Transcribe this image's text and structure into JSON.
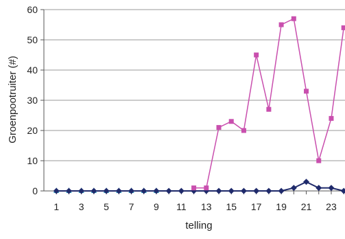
{
  "chart_data": {
    "type": "line",
    "title": "",
    "xlabel": "telling",
    "ylabel": "Groenpootruiter (#)",
    "x": [
      1,
      2,
      3,
      4,
      5,
      6,
      7,
      8,
      9,
      10,
      11,
      12,
      13,
      14,
      15,
      16,
      17,
      18,
      19,
      20,
      21,
      22,
      23,
      24
    ],
    "x_tick_labels": [
      "1",
      "3",
      "5",
      "7",
      "9",
      "11",
      "13",
      "15",
      "17",
      "19",
      "21",
      "23"
    ],
    "y_tick_labels": [
      "0",
      "10",
      "20",
      "30",
      "40",
      "50",
      "60"
    ],
    "ylim": [
      0,
      60
    ],
    "grid": true,
    "legend": "none",
    "series": [
      {
        "color": "#c94fae",
        "marker": "square",
        "values": [
          null,
          null,
          null,
          null,
          null,
          null,
          null,
          null,
          null,
          null,
          null,
          1,
          1,
          21,
          23,
          20,
          45,
          27,
          55,
          57,
          33,
          10,
          24,
          54
        ]
      },
      {
        "color": "#1f2a6b",
        "marker": "diamond",
        "values": [
          0,
          0,
          0,
          0,
          0,
          0,
          0,
          0,
          0,
          0,
          0,
          0,
          0,
          0,
          0,
          0,
          0,
          0,
          0,
          1,
          3,
          1,
          1,
          0
        ]
      },
      {
        "color": "#3aa9c9",
        "marker": "triangle",
        "values": [
          0,
          0,
          0,
          0,
          0,
          0,
          0,
          0,
          0,
          null,
          null,
          null,
          null,
          null,
          null,
          null,
          null,
          null,
          null,
          null,
          null,
          null,
          null,
          null
        ]
      }
    ]
  }
}
